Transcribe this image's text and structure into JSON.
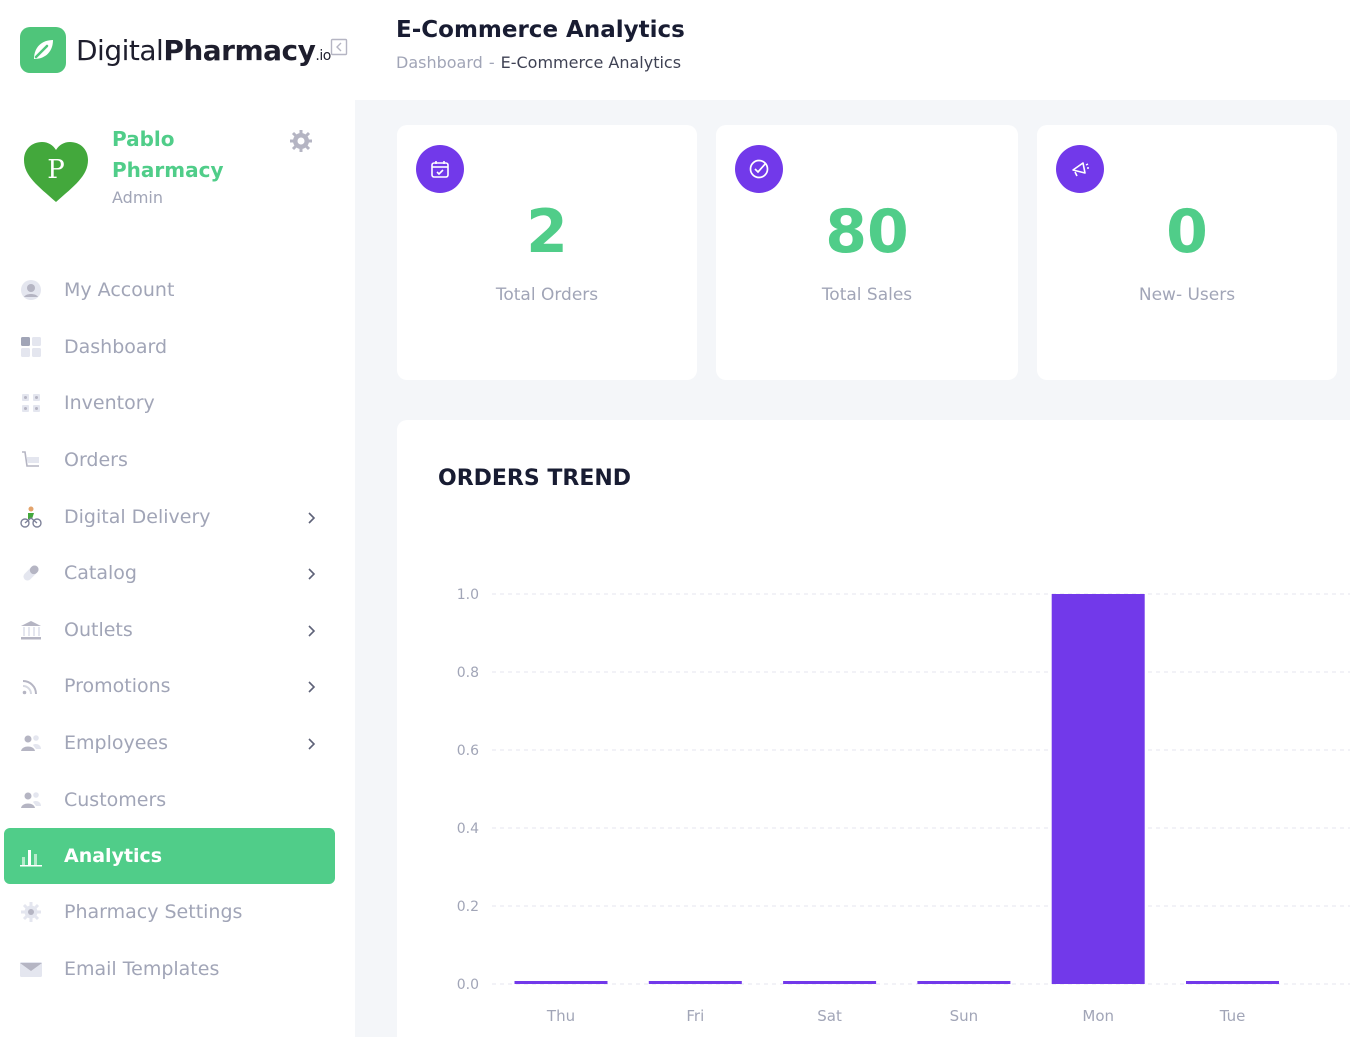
{
  "brand": {
    "name_light": "Digital",
    "name_bold": "Pharmacy",
    "name_suffix": ".io"
  },
  "profile": {
    "name": "Pablo Pharmacy",
    "role": "Admin"
  },
  "sidebar": {
    "items": [
      {
        "label": "My Account",
        "icon": "user-icon",
        "chevron": false,
        "active": false
      },
      {
        "label": "Dashboard",
        "icon": "dashboard-icon",
        "chevron": false,
        "active": false
      },
      {
        "label": "Inventory",
        "icon": "grid-icon",
        "chevron": false,
        "active": false
      },
      {
        "label": "Orders",
        "icon": "cart-icon",
        "chevron": false,
        "active": false
      },
      {
        "label": "Digital Delivery",
        "icon": "bike-icon",
        "chevron": true,
        "active": false
      },
      {
        "label": "Catalog",
        "icon": "pill-icon",
        "chevron": true,
        "active": false
      },
      {
        "label": "Outlets",
        "icon": "bank-icon",
        "chevron": true,
        "active": false
      },
      {
        "label": "Promotions",
        "icon": "rss-icon",
        "chevron": true,
        "active": false
      },
      {
        "label": "Employees",
        "icon": "users-icon",
        "chevron": true,
        "active": false
      },
      {
        "label": "Customers",
        "icon": "users-icon",
        "chevron": false,
        "active": false
      },
      {
        "label": "Analytics",
        "icon": "bar-chart-icon",
        "chevron": false,
        "active": true
      },
      {
        "label": "Pharmacy Settings",
        "icon": "gear-icon",
        "chevron": false,
        "active": false
      },
      {
        "label": "Email Templates",
        "icon": "envelope-icon",
        "chevron": false,
        "active": false
      }
    ]
  },
  "header": {
    "title": "E-Commerce Analytics",
    "breadcrumb": {
      "parent": "Dashboard",
      "separator": "-",
      "current": "E-Commerce Analytics"
    }
  },
  "stats": [
    {
      "value": "2",
      "label": "Total Orders",
      "icon": "calendar-check-icon"
    },
    {
      "value": "80",
      "label": "Total Sales",
      "icon": "check-circle-icon"
    },
    {
      "value": "0",
      "label": "New- Users",
      "icon": "megaphone-icon"
    }
  ],
  "colors": {
    "accent_green": "#50cd89",
    "accent_purple": "#7239ea",
    "muted": "#a1a5b7"
  },
  "chart_data": {
    "type": "bar",
    "title": "ORDERS TREND",
    "categories": [
      "Thu",
      "Fri",
      "Sat",
      "Sun",
      "Mon",
      "Tue"
    ],
    "values": [
      0,
      0,
      0,
      0,
      1,
      0
    ],
    "ylim": [
      0,
      1.0
    ],
    "yticks": [
      "0.0",
      "0.2",
      "0.4",
      "0.6",
      "0.8",
      "1.0"
    ],
    "grid": true,
    "bar_color": "#7239ea"
  }
}
